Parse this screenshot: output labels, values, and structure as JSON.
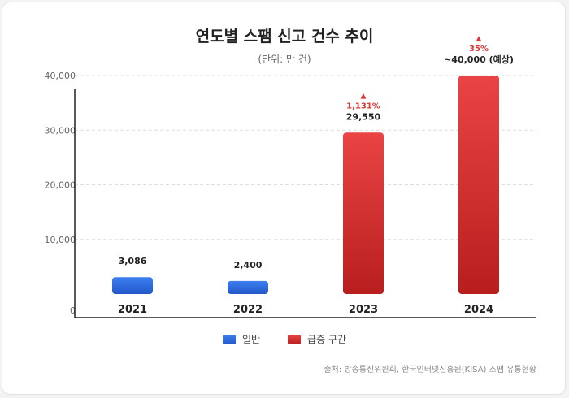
{
  "title": "연도별 스팸 신고 건수 추이",
  "subtitle": "(단위: 만 건)",
  "source": "출처: 방송통신위원회, 한국인터넷진흥원(KISA) 스팸 유통현황",
  "legend": [
    {
      "label": "일반",
      "color": "#2f6fe0"
    },
    {
      "label": "급증 구간",
      "color": "#d93a3a"
    }
  ],
  "chart_data": {
    "type": "bar",
    "categories": [
      "2021",
      "2022",
      "2023",
      "2024"
    ],
    "values": [
      3086,
      2400,
      29550,
      40000
    ],
    "value_labels": [
      "3,086",
      "2,400",
      "29,550",
      "~40,000 (예상)"
    ],
    "growth_labels": [
      "",
      "",
      "1,131%",
      "35%"
    ],
    "series_group": [
      "일반",
      "일반",
      "급증 구간",
      "급증 구간"
    ],
    "yticks": [
      0,
      10000,
      20000,
      30000,
      40000
    ],
    "ytick_labels": [
      "0",
      "10,000",
      "20,000",
      "30,000",
      "40,000"
    ],
    "ylim": [
      0,
      40000
    ],
    "grid": true,
    "legend_position": "bottom"
  }
}
